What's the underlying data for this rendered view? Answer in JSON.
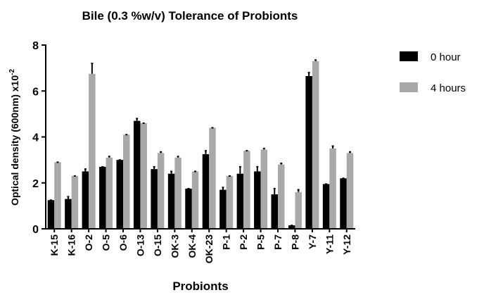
{
  "chart_data": {
    "type": "bar",
    "title": "Bile (0.3 %w/v) Tolerance of Probionts",
    "xlabel": "Probionts",
    "ylabel": {
      "text": "Optical density (600nm) x10",
      "superscript": "-2"
    },
    "categories": [
      "K-15",
      "K-16",
      "O-2",
      "O-5",
      "O-6",
      "O-13",
      "O-15",
      "OK-3",
      "OK-4",
      "OK-23",
      "P-1",
      "P-2",
      "P-5",
      "P-7",
      "P-8",
      "Y-7",
      "Y-11",
      "Y-12"
    ],
    "series": [
      {
        "name": "0 hour",
        "color": "#000000",
        "values": [
          1.25,
          1.3,
          2.5,
          2.7,
          3.0,
          4.7,
          2.6,
          2.4,
          1.75,
          3.25,
          1.7,
          2.4,
          2.5,
          1.5,
          0.15,
          6.65,
          1.95,
          2.2
        ],
        "errors": [
          0,
          0.1,
          0.1,
          0,
          0,
          0.1,
          0.1,
          0.1,
          0,
          0.15,
          0.1,
          0.3,
          0.2,
          0.25,
          0,
          0.15,
          0,
          0
        ]
      },
      {
        "name": "4 hours",
        "color": "#a9a9a9",
        "values": [
          2.9,
          2.3,
          6.75,
          3.1,
          4.1,
          4.6,
          3.3,
          3.1,
          2.5,
          4.4,
          2.3,
          3.4,
          3.45,
          2.8,
          1.6,
          7.3,
          3.5,
          3.3
        ],
        "errors": [
          0,
          0,
          0.45,
          0.05,
          0,
          0,
          0.05,
          0.05,
          0,
          0,
          0,
          0,
          0.05,
          0.05,
          0.1,
          0.05,
          0.1,
          0.05
        ]
      }
    ],
    "ylim": [
      0,
      8
    ],
    "yticks": [
      0,
      2,
      4,
      6,
      8
    ],
    "legend": "right"
  }
}
